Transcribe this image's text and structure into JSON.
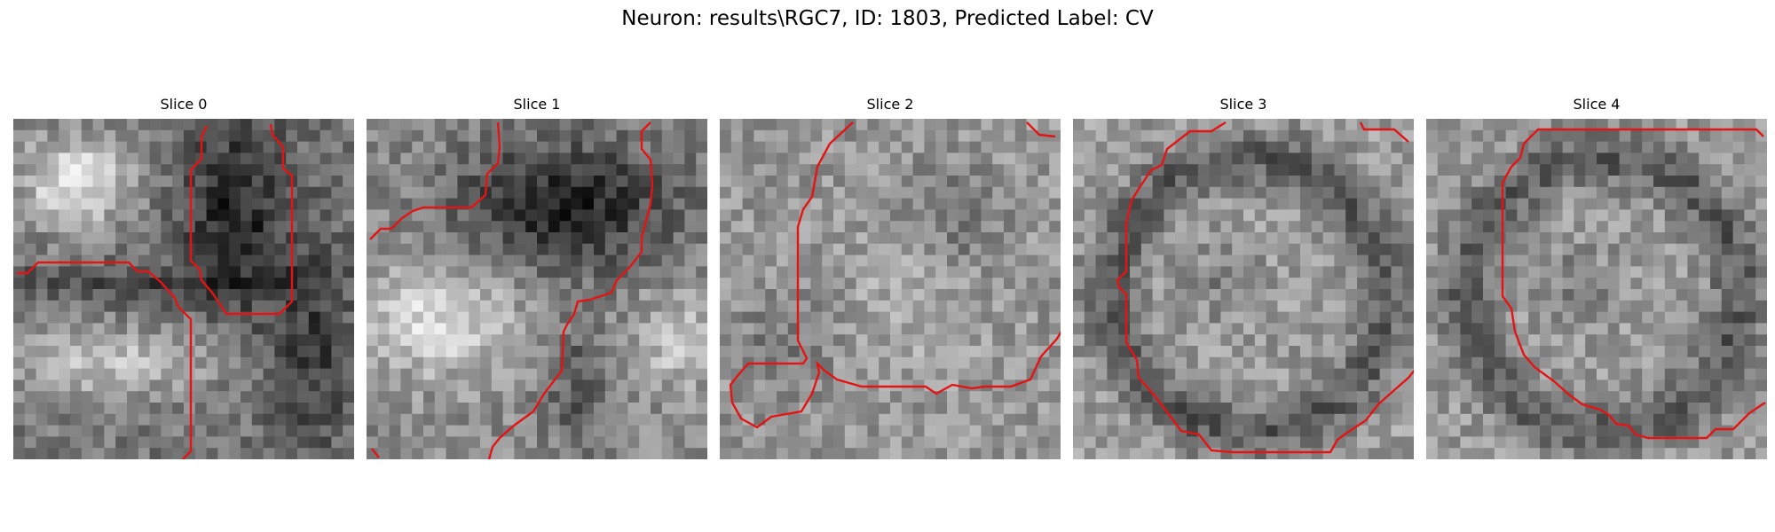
{
  "figure": {
    "suptitle": "Neuron: results\\RGC7, ID: 1803, Predicted Label: CV",
    "contour_color": "#e41414",
    "panels": [
      {
        "title": "Slice 0",
        "seed": 11,
        "style": "slice0"
      },
      {
        "title": "Slice 1",
        "seed": 23,
        "style": "slice1"
      },
      {
        "title": "Slice 2",
        "seed": 37,
        "style": "noisy"
      },
      {
        "title": "Slice 3",
        "seed": 41,
        "style": "ring"
      },
      {
        "title": "Slice 4",
        "seed": 53,
        "style": "ring"
      }
    ]
  }
}
